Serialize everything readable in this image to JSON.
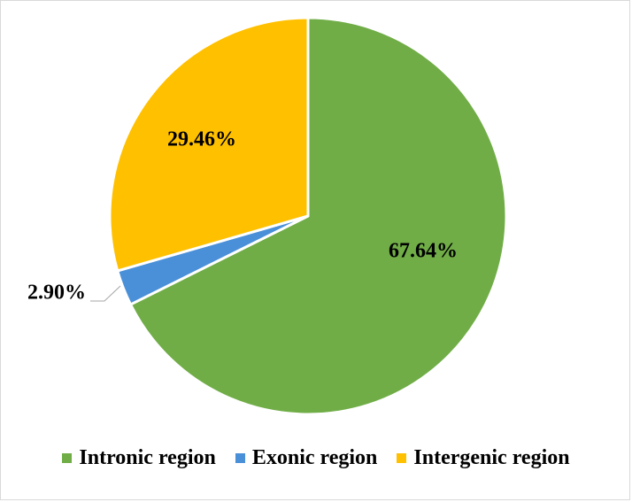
{
  "chart_data": {
    "type": "pie",
    "title": "",
    "start_angle_deg": 0,
    "direction": "clockwise",
    "legend_position": "bottom",
    "slices": [
      {
        "name": "Intronic region",
        "value": 67.64,
        "label": "67.64%",
        "color": "#70AD47"
      },
      {
        "name": "Exonic region",
        "value": 2.9,
        "label": "2.90%",
        "color": "#4A90D9"
      },
      {
        "name": "Intergenic region",
        "value": 29.46,
        "label": "29.46%",
        "color": "#FFC000"
      }
    ]
  },
  "legend": {
    "items": [
      {
        "label": "Intronic region",
        "color": "#70AD47"
      },
      {
        "label": "Exonic region",
        "color": "#4A90D9"
      },
      {
        "label": "Intergenic region",
        "color": "#FFC000"
      }
    ]
  }
}
